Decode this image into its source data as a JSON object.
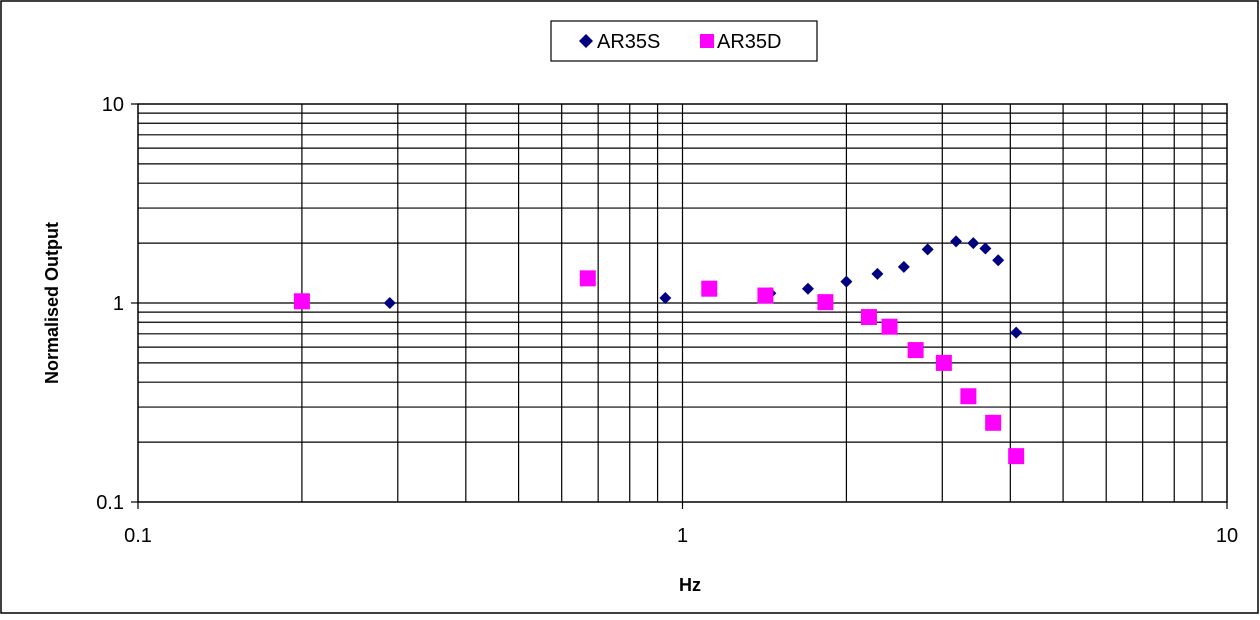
{
  "chart_data": {
    "type": "scatter",
    "title": "",
    "xlabel": "Hz",
    "ylabel": "Normalised Output",
    "x_scale": "log",
    "y_scale": "log",
    "xlim": [
      0.1,
      10
    ],
    "ylim": [
      0.1,
      10
    ],
    "x_ticks": [
      0.1,
      1,
      10
    ],
    "x_tick_labels": [
      "0.1",
      "1",
      "10"
    ],
    "y_ticks": [
      0.1,
      1,
      10
    ],
    "y_tick_labels": [
      "0.1",
      "1",
      "10"
    ],
    "grid": true,
    "legend": {
      "position": "top-center",
      "entries": [
        "AR35S",
        "AR35D"
      ]
    },
    "series": [
      {
        "name": "AR35S",
        "marker": "diamond",
        "color": "#000080",
        "x": [
          0.29,
          0.93,
          1.45,
          1.7,
          2.0,
          2.28,
          2.55,
          2.82,
          3.18,
          3.42,
          3.6,
          3.8,
          4.1
        ],
        "y": [
          1.0,
          1.06,
          1.12,
          1.18,
          1.28,
          1.4,
          1.52,
          1.86,
          2.04,
          2.0,
          1.88,
          1.64,
          0.71
        ]
      },
      {
        "name": "AR35D",
        "marker": "square",
        "color": "#ff00ff",
        "x": [
          0.2,
          0.67,
          1.12,
          1.42,
          1.83,
          2.2,
          2.4,
          2.68,
          3.02,
          3.35,
          3.72,
          4.1
        ],
        "y": [
          1.02,
          1.33,
          1.18,
          1.09,
          1.01,
          0.85,
          0.76,
          0.58,
          0.5,
          0.34,
          0.25,
          0.17
        ]
      }
    ]
  }
}
